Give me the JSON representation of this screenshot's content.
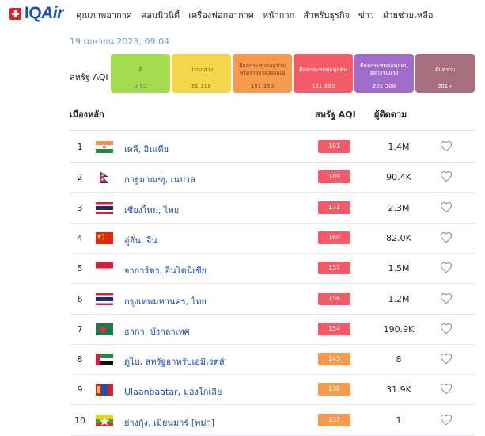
{
  "brand": {
    "prefix": "IQ",
    "suffix": "Air"
  },
  "nav": [
    "คุณภาพอากาศ",
    "คอมมิวนิตี้",
    "เครื่องฟอกอากาศ",
    "หน้ากาก",
    "สำหรับธุรกิจ",
    "ข่าว",
    "ฝ่ายช่วยเหลือ"
  ],
  "date": "19 เมษายน 2023, 09:04",
  "aqi_legend": {
    "label": "สหรัฐ AQI",
    "levels": [
      {
        "name": "ดี",
        "range": "0-50",
        "color": "#a3dc4f",
        "text_color": "#6e7a3a"
      },
      {
        "name": "ปานกลาง",
        "range": "51-100",
        "color": "#f6d64a",
        "text_color": "#8a6d1b"
      },
      {
        "name": "มีผลกระทบต่อผู้ป่วยหรือร่างกายอ่อนแอ",
        "range": "101-150",
        "color": "#f79a4e",
        "text_color": "#7a4420"
      },
      {
        "name": "มีผลกระทบต่อทุกคน",
        "range": "151-200",
        "color": "#f45a68",
        "text_color": "#ffffff"
      },
      {
        "name": "มีผลกระทบต่อทุกคนอย่างรุนแรง",
        "range": "201-300",
        "color": "#a16cc8",
        "text_color": "#ffffff"
      },
      {
        "name": "อันตราย",
        "range": "301+",
        "color": "#a8707f",
        "text_color": "#ffffff"
      }
    ]
  },
  "table": {
    "headers": {
      "city": "เมืองหลัก",
      "aqi": "สหรัฐ AQI",
      "followers": "ผู้ติดตาม"
    },
    "rows": [
      {
        "rank": "1",
        "flag": "india-flag-icon",
        "city": "เดลี, อินเดีย",
        "aqi": "191",
        "aqi_color": "#f45a68",
        "followers": "1.4M"
      },
      {
        "rank": "2",
        "flag": "nepal-flag-icon",
        "city": "กาฐมาณฑุ, เนปาล",
        "aqi": "189",
        "aqi_color": "#f45a68",
        "followers": "90.4K"
      },
      {
        "rank": "3",
        "flag": "thailand-flag-icon",
        "city": "เชียงใหม่, ไทย",
        "aqi": "171",
        "aqi_color": "#f45a68",
        "followers": "2.3M"
      },
      {
        "rank": "4",
        "flag": "china-flag-icon",
        "city": "อู่ฮั่น, จีน",
        "aqi": "160",
        "aqi_color": "#f45a68",
        "followers": "82.0K"
      },
      {
        "rank": "5",
        "flag": "indonesia-flag-icon",
        "city": "จาการ์ตา, อินโดนีเซีย",
        "aqi": "157",
        "aqi_color": "#f45a68",
        "followers": "1.5M"
      },
      {
        "rank": "6",
        "flag": "thailand-flag-icon",
        "city": "กรุงเทพมหานคร, ไทย",
        "aqi": "156",
        "aqi_color": "#f45a68",
        "followers": "1.2M"
      },
      {
        "rank": "7",
        "flag": "bangladesh-flag-icon",
        "city": "ธากา, บังกลาเทศ",
        "aqi": "154",
        "aqi_color": "#f45a68",
        "followers": "190.9K"
      },
      {
        "rank": "8",
        "flag": "uae-flag-icon",
        "city": "ดูไบ, สหรัฐอาหรับเอมิเรตส์",
        "aqi": "145",
        "aqi_color": "#f79a4e",
        "followers": "8"
      },
      {
        "rank": "9",
        "flag": "mongolia-flag-icon",
        "city": "Ulaanbaatar, มองโกเลีย",
        "aqi": "138",
        "aqi_color": "#f79a4e",
        "followers": "31.9K"
      },
      {
        "rank": "10",
        "flag": "myanmar-flag-icon",
        "city": "ย่างกุ้ง, เมียนมาร์ [พม่า]",
        "aqi": "137",
        "aqi_color": "#f79a4e",
        "followers": "1"
      }
    ]
  }
}
